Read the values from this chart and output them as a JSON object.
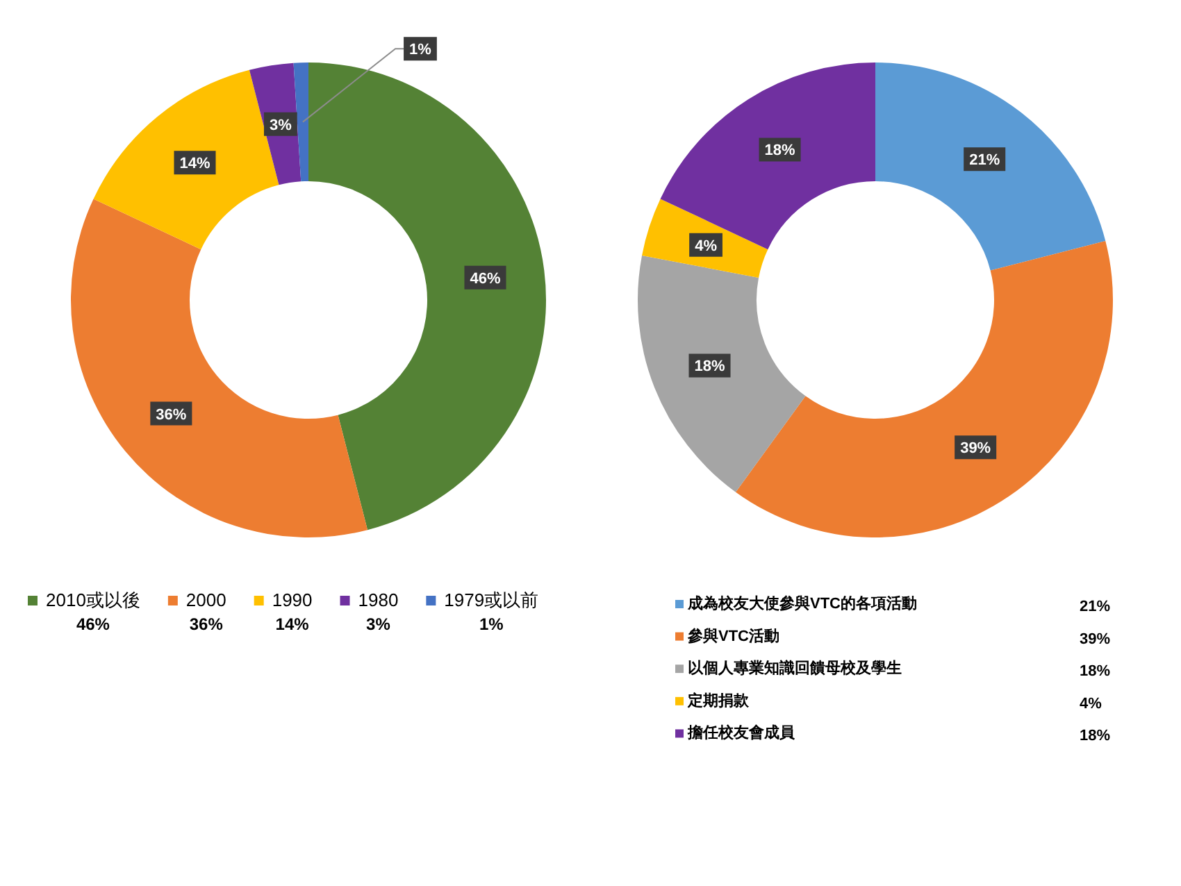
{
  "chart_data": [
    {
      "type": "donut",
      "categories": [
        "2010或以後",
        "2000",
        "1990",
        "1980",
        "1979或以前"
      ],
      "values": [
        46,
        36,
        14,
        3,
        1
      ],
      "colors": [
        "#548235",
        "#ed7d31",
        "#ffc000",
        "#7030a0",
        "#4472c4"
      ],
      "value_labels": [
        "46%",
        "36%",
        "14%",
        "3%",
        "1%"
      ],
      "legend": "bottom"
    },
    {
      "type": "donut",
      "categories": [
        "成為校友大使參與VTC的各項活動",
        "參與VTC活動",
        "以個人專業知識回饋母校及學生",
        "定期捐款",
        "擔任校友會成員"
      ],
      "values": [
        21,
        39,
        18,
        4,
        18
      ],
      "colors": [
        "#5b9bd5",
        "#ed7d31",
        "#a5a5a5",
        "#ffc000",
        "#7030a0"
      ],
      "value_labels": [
        "21%",
        "39%",
        "18%",
        "4%",
        "18%"
      ],
      "legend": "bottom"
    }
  ]
}
